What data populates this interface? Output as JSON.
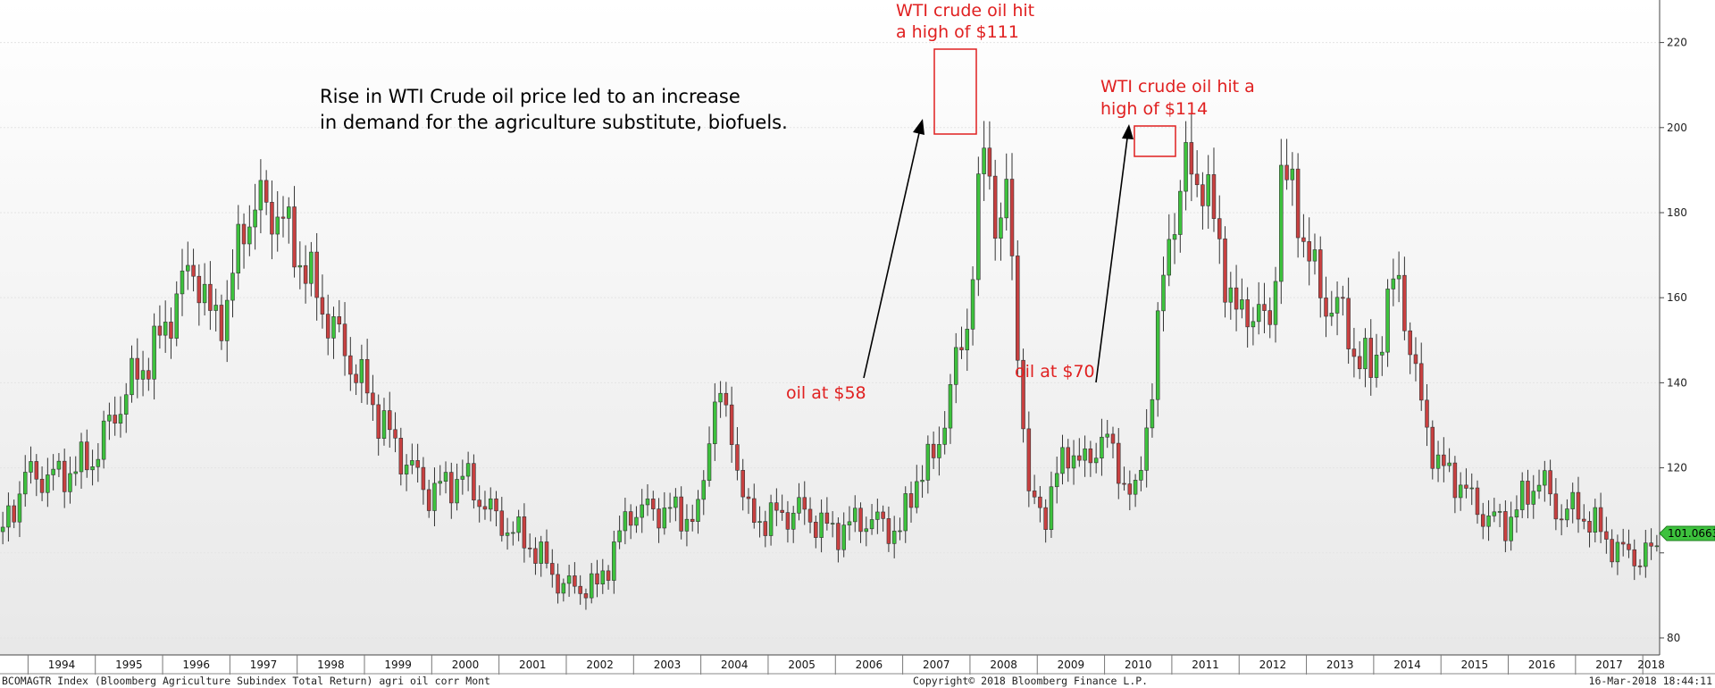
{
  "chart_data": {
    "type": "candlestick",
    "ylim": [
      76,
      230
    ],
    "yticks": [
      80,
      100,
      120,
      140,
      160,
      180,
      200,
      220
    ],
    "ytick_labels_visible": [
      "80",
      "",
      "120",
      "140",
      "160",
      "180",
      "200",
      "220"
    ],
    "x_start": "1993-08",
    "x_end": "2018-04",
    "years": [
      "1994",
      "1995",
      "1996",
      "1997",
      "1998",
      "1999",
      "2000",
      "2001",
      "2002",
      "2003",
      "2004",
      "2005",
      "2006",
      "2007",
      "2008",
      "2009",
      "2010",
      "2011",
      "2012",
      "2013",
      "2014",
      "2015",
      "2016",
      "2017",
      "2018"
    ],
    "anchors": [
      [
        "1993-08",
        105
      ],
      [
        "1993-12",
        118
      ],
      [
        "1994-06",
        118
      ],
      [
        "1994-12",
        122
      ],
      [
        "1995-06",
        138
      ],
      [
        "1995-12",
        150
      ],
      [
        "1996-03",
        160
      ],
      [
        "1996-06",
        168
      ],
      [
        "1996-09",
        155
      ],
      [
        "1996-12",
        158
      ],
      [
        "1997-03",
        178
      ],
      [
        "1997-06",
        182
      ],
      [
        "1997-09",
        180
      ],
      [
        "1997-12",
        172
      ],
      [
        "1998-06",
        155
      ],
      [
        "1998-12",
        140
      ],
      [
        "1999-06",
        125
      ],
      [
        "1999-12",
        114
      ],
      [
        "2000-06",
        118
      ],
      [
        "2000-12",
        108
      ],
      [
        "2001-06",
        102
      ],
      [
        "2001-12",
        92
      ],
      [
        "2002-06",
        92
      ],
      [
        "2002-12",
        110
      ],
      [
        "2003-06",
        110
      ],
      [
        "2003-12",
        108
      ],
      [
        "2004-03",
        138
      ],
      [
        "2004-06",
        128
      ],
      [
        "2004-09",
        108
      ],
      [
        "2004-12",
        108
      ],
      [
        "2005-06",
        110
      ],
      [
        "2005-12",
        105
      ],
      [
        "2006-06",
        108
      ],
      [
        "2006-12",
        105
      ],
      [
        "2007-03",
        118
      ],
      [
        "2007-06",
        122
      ],
      [
        "2007-09",
        138
      ],
      [
        "2007-12",
        155
      ],
      [
        "2008-03",
        195
      ],
      [
        "2008-06",
        175
      ],
      [
        "2008-07",
        185
      ],
      [
        "2008-09",
        150
      ],
      [
        "2008-11",
        112
      ],
      [
        "2009-02",
        110
      ],
      [
        "2009-06",
        125
      ],
      [
        "2009-09",
        120
      ],
      [
        "2009-12",
        128
      ],
      [
        "2010-03",
        120
      ],
      [
        "2010-06",
        112
      ],
      [
        "2010-09",
        140
      ],
      [
        "2010-12",
        175
      ],
      [
        "2011-03",
        190
      ],
      [
        "2011-06",
        188
      ],
      [
        "2011-09",
        172
      ],
      [
        "2011-12",
        155
      ],
      [
        "2012-03",
        158
      ],
      [
        "2012-06",
        152
      ],
      [
        "2012-08",
        190
      ],
      [
        "2012-11",
        180
      ],
      [
        "2013-03",
        160
      ],
      [
        "2013-06",
        158
      ],
      [
        "2013-09",
        148
      ],
      [
        "2013-12",
        142
      ],
      [
        "2014-03",
        158
      ],
      [
        "2014-05",
        165
      ],
      [
        "2014-08",
        140
      ],
      [
        "2014-12",
        120
      ],
      [
        "2015-03",
        118
      ],
      [
        "2015-06",
        112
      ],
      [
        "2015-09",
        108
      ],
      [
        "2015-12",
        107
      ],
      [
        "2016-03",
        112
      ],
      [
        "2016-06",
        118
      ],
      [
        "2016-09",
        110
      ],
      [
        "2016-12",
        110
      ],
      [
        "2017-03",
        108
      ],
      [
        "2017-06",
        103
      ],
      [
        "2017-09",
        100
      ],
      [
        "2017-12",
        99
      ],
      [
        "2018-03",
        101
      ]
    ],
    "last_value": "101.0663",
    "annotations": {
      "note_main_line1": "Rise in WTI Crude oil price led to an increase",
      "note_main_line2": "in demand for the agriculture substitute, biofuels.",
      "peak1_line1": "WTI crude oil hit",
      "peak1_line2": "a high of $111",
      "peak2_line1": "WTI crude oil hit a",
      "peak2_line2": "high of $114",
      "oil58": "oil at $58",
      "oil70": "oil at $70"
    },
    "footer_left": "BCOMAGTR Index (Bloomberg Agriculture Subindex Total Return) agri oil corr  Mont",
    "footer_center": "Copyright© 2018 Bloomberg Finance L.P.",
    "footer_right": "16-Mar-2018 18:44:11",
    "colors": {
      "up": "#3dc23d",
      "down": "#c84040",
      "annotation": "#e02020",
      "last_box": "#3dc23d"
    }
  }
}
